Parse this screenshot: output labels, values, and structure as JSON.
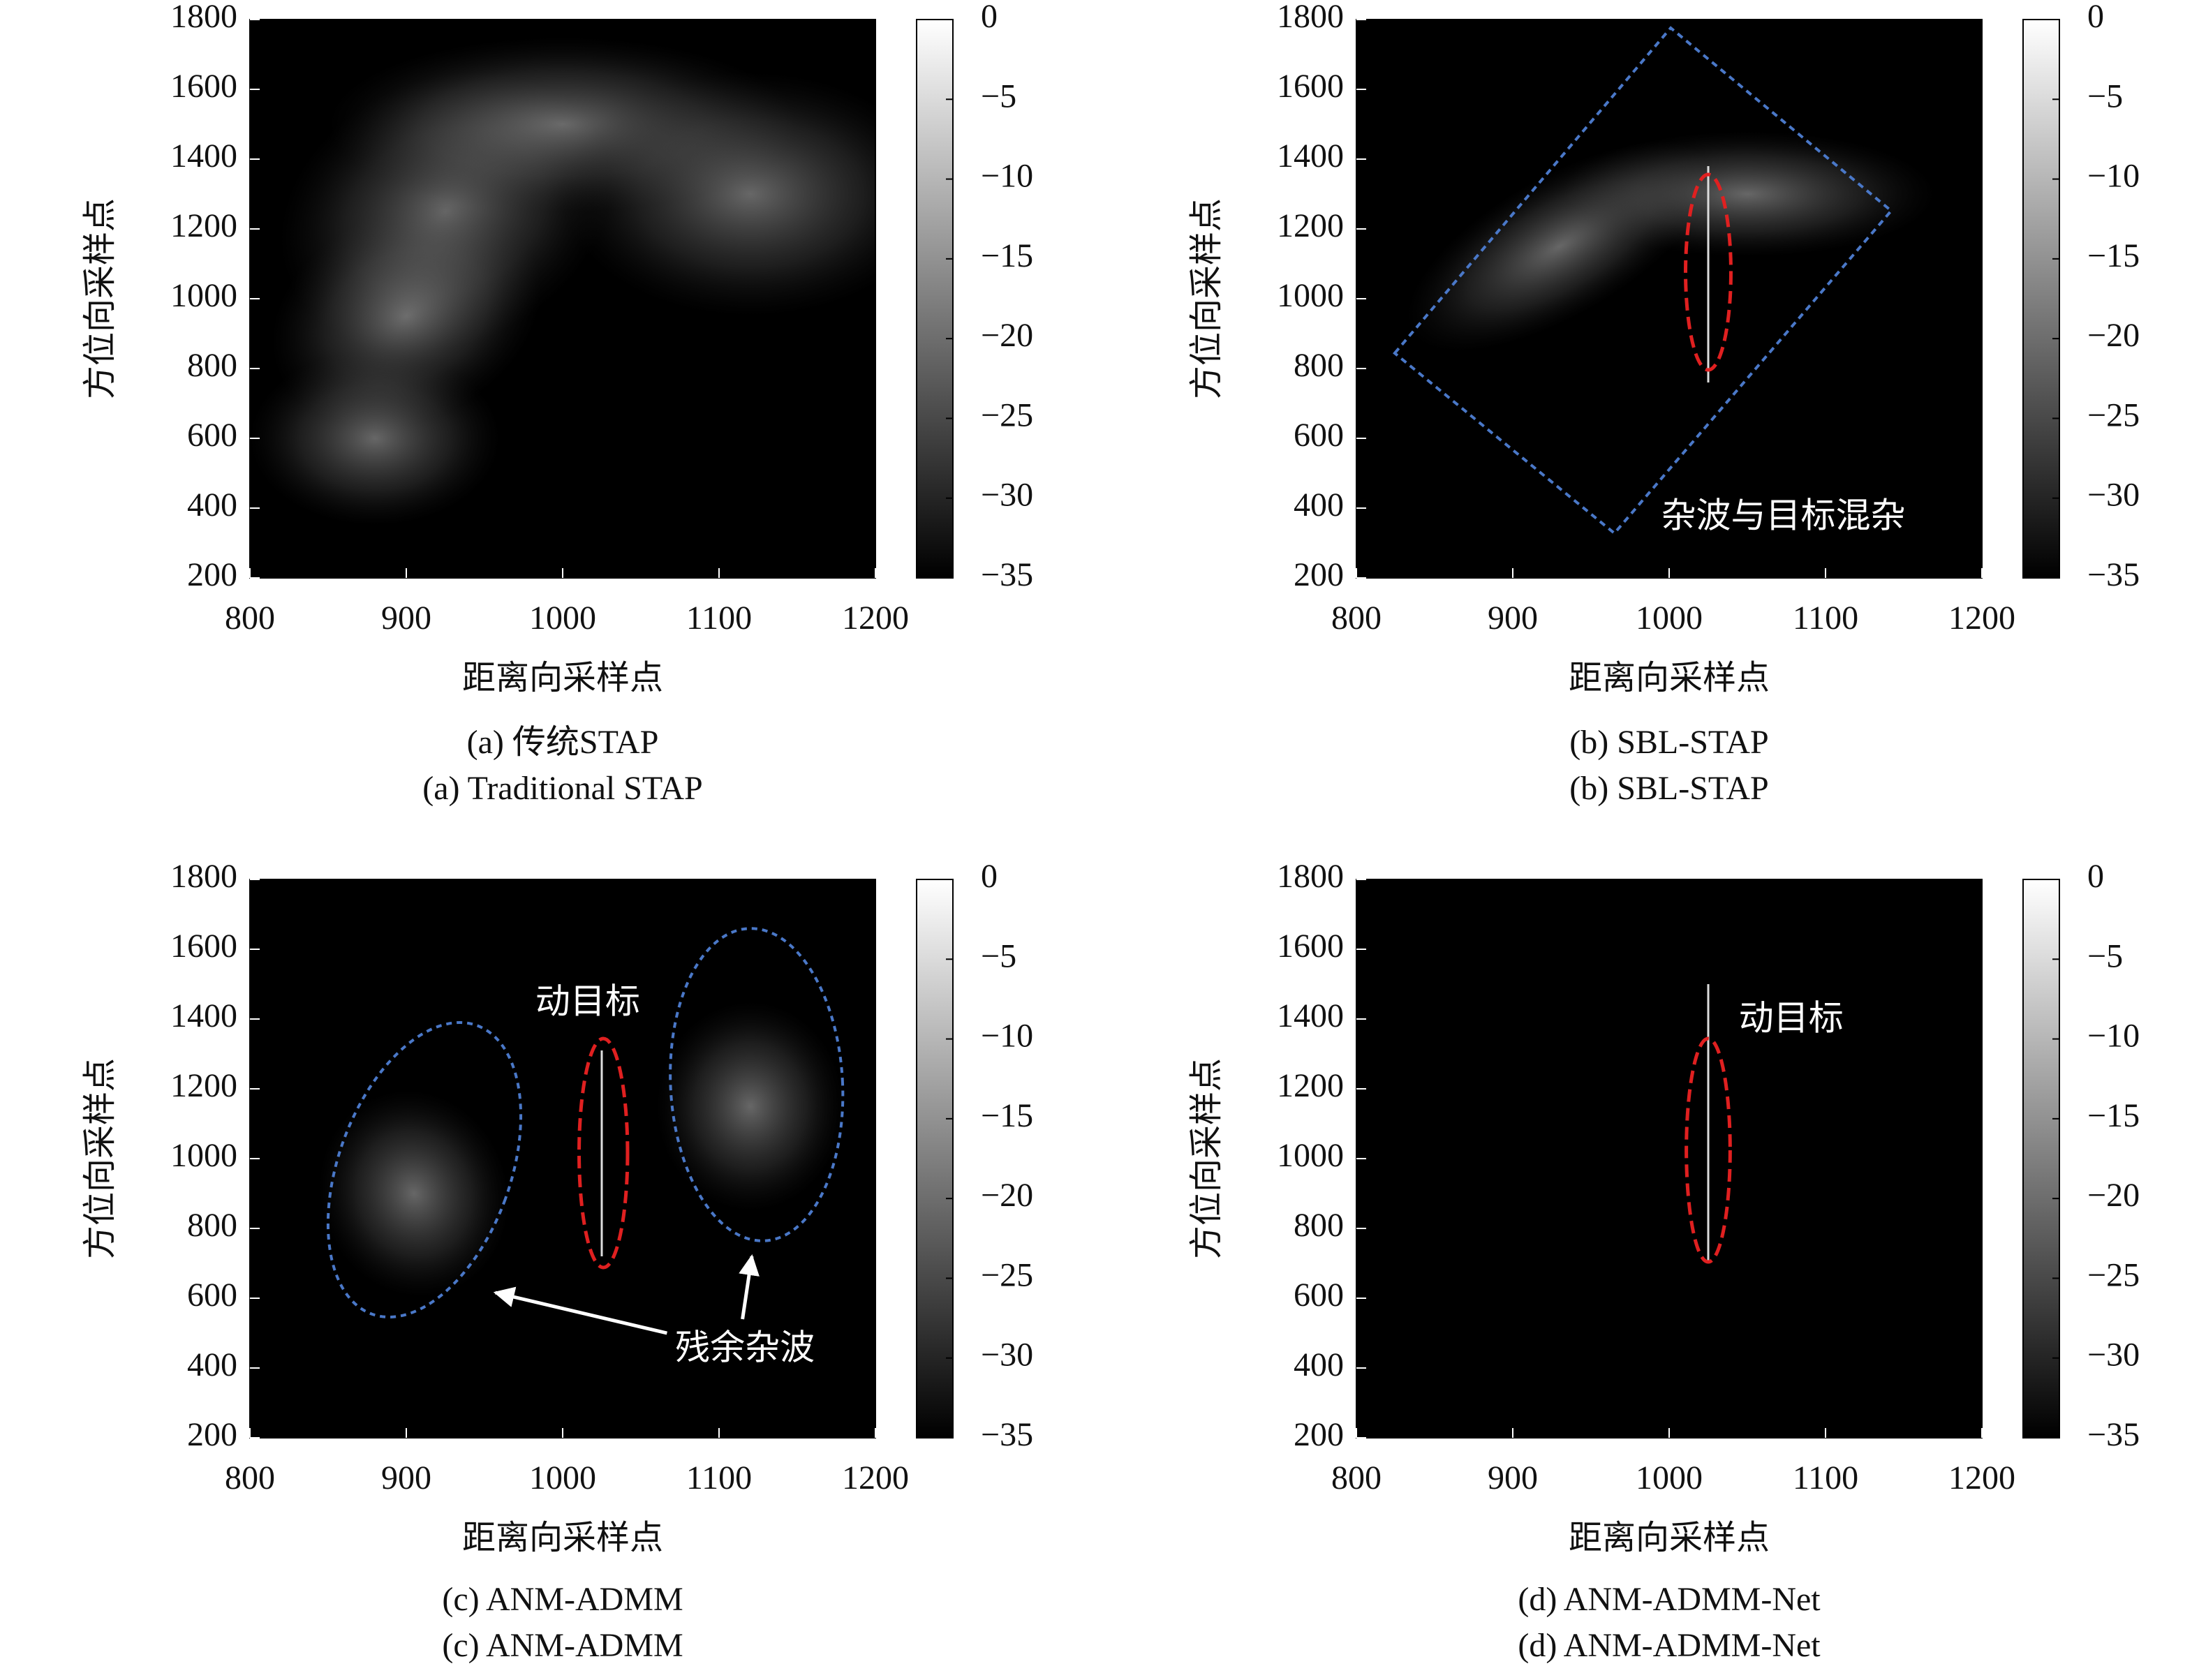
{
  "chart_data": [
    {
      "type": "heatmap",
      "caption_cn": "(a) 传统STAP",
      "caption_en": "(a) Traditional STAP",
      "xlabel": "距离向采样点",
      "ylabel": "方位向采样点",
      "xlim": [
        800,
        1200
      ],
      "xticks": [
        800,
        900,
        1000,
        1100,
        1200
      ],
      "ylim": [
        200,
        1800
      ],
      "yticks": [
        200,
        400,
        600,
        800,
        1000,
        1200,
        1400,
        1600,
        1800
      ],
      "clim": [
        -35,
        0
      ],
      "cticks": [
        0,
        {
          "value": -5,
          "label": "−5"
        },
        {
          "value": -10,
          "label": "−10"
        },
        {
          "value": -15,
          "label": "−15"
        },
        {
          "value": -20,
          "label": "−20"
        },
        {
          "value": -25,
          "label": "−25"
        },
        {
          "value": -30,
          "label": "−30"
        },
        {
          "value": -35,
          "label": "−35"
        }
      ],
      "annotations": []
    },
    {
      "type": "heatmap",
      "caption_cn": "(b) SBL-STAP",
      "caption_en": "(b) SBL-STAP",
      "xlabel": "距离向采样点",
      "ylabel": "方位向采样点",
      "xlim": [
        800,
        1200
      ],
      "xticks": [
        800,
        900,
        1000,
        1100,
        1200
      ],
      "ylim": [
        200,
        1800
      ],
      "yticks": [
        200,
        400,
        600,
        800,
        1000,
        1200,
        1400,
        1600,
        1800
      ],
      "clim": [
        -35,
        0
      ],
      "cticks": [
        0,
        {
          "value": -5,
          "label": "−5"
        },
        {
          "value": -10,
          "label": "−10"
        },
        {
          "value": -15,
          "label": "−15"
        },
        {
          "value": -20,
          "label": "−20"
        },
        {
          "value": -25,
          "label": "−25"
        },
        {
          "value": -30,
          "label": "−30"
        },
        {
          "value": -35,
          "label": "−35"
        }
      ],
      "annotations": [
        "杂波与目标混杂"
      ]
    },
    {
      "type": "heatmap",
      "caption_cn": "(c) ANM-ADMM",
      "caption_en": "(c) ANM-ADMM",
      "xlabel": "距离向采样点",
      "ylabel": "方位向采样点",
      "xlim": [
        800,
        1200
      ],
      "xticks": [
        800,
        900,
        1000,
        1100,
        1200
      ],
      "ylim": [
        200,
        1800
      ],
      "yticks": [
        200,
        400,
        600,
        800,
        1000,
        1200,
        1400,
        1600,
        1800
      ],
      "clim": [
        -35,
        0
      ],
      "cticks": [
        0,
        {
          "value": -5,
          "label": "−5"
        },
        {
          "value": -10,
          "label": "−10"
        },
        {
          "value": -15,
          "label": "−15"
        },
        {
          "value": -20,
          "label": "−20"
        },
        {
          "value": -25,
          "label": "−25"
        },
        {
          "value": -30,
          "label": "−30"
        },
        {
          "value": -35,
          "label": "−35"
        }
      ],
      "annotations": [
        "动目标",
        "残余杂波"
      ]
    },
    {
      "type": "heatmap",
      "caption_cn": "(d) ANM-ADMM-Net",
      "caption_en": "(d) ANM-ADMM-Net",
      "xlabel": "距离向采样点",
      "ylabel": "方位向采样点",
      "xlim": [
        800,
        1200
      ],
      "xticks": [
        800,
        900,
        1000,
        1100,
        1200
      ],
      "ylim": [
        200,
        1800
      ],
      "yticks": [
        200,
        400,
        600,
        800,
        1000,
        1200,
        1400,
        1600,
        1800
      ],
      "clim": [
        -35,
        0
      ],
      "cticks": [
        0,
        {
          "value": -5,
          "label": "−5"
        },
        {
          "value": -10,
          "label": "−10"
        },
        {
          "value": -15,
          "label": "−15"
        },
        {
          "value": -20,
          "label": "−20"
        },
        {
          "value": -25,
          "label": "−25"
        },
        {
          "value": -30,
          "label": "−30"
        },
        {
          "value": -35,
          "label": "−35"
        }
      ],
      "annotations": [
        "动目标"
      ]
    }
  ]
}
